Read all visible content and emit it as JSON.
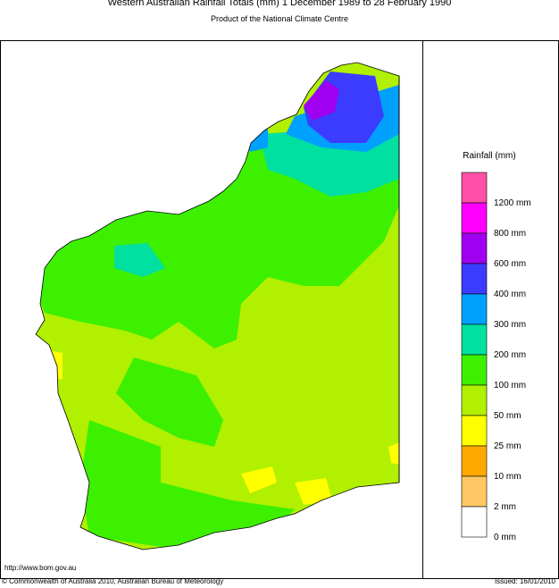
{
  "header": {
    "title": "Western Australian Rainfall Totals (mm) 1 December 1989 to 28 February 1990",
    "subtitle": "Product of the National Climate Centre"
  },
  "legend": {
    "title": "Rainfall (mm)",
    "items": [
      {
        "color": "#ff4fa8",
        "label": "1200 mm"
      },
      {
        "color": "#ff00ff",
        "label": "800 mm"
      },
      {
        "color": "#a000f0",
        "label": "600 mm"
      },
      {
        "color": "#3c3cff",
        "label": "400 mm"
      },
      {
        "color": "#00a0ff",
        "label": "300 mm"
      },
      {
        "color": "#00e0a0",
        "label": "200 mm"
      },
      {
        "color": "#3cf000",
        "label": "100 mm"
      },
      {
        "color": "#b0f000",
        "label": "50 mm"
      },
      {
        "color": "#ffff00",
        "label": "25 mm"
      },
      {
        "color": "#ffaa00",
        "label": "10 mm"
      },
      {
        "color": "#ffc864",
        "label": "2 mm"
      },
      {
        "color": "#ffffff",
        "label": "0 mm"
      }
    ]
  },
  "footer": {
    "url": "http://www.bom.gov.au",
    "copyright": "© Commonwealth of Australia 2010, Australian Bureau of Meteorology",
    "issued": "Issued: 16/01/2010"
  }
}
